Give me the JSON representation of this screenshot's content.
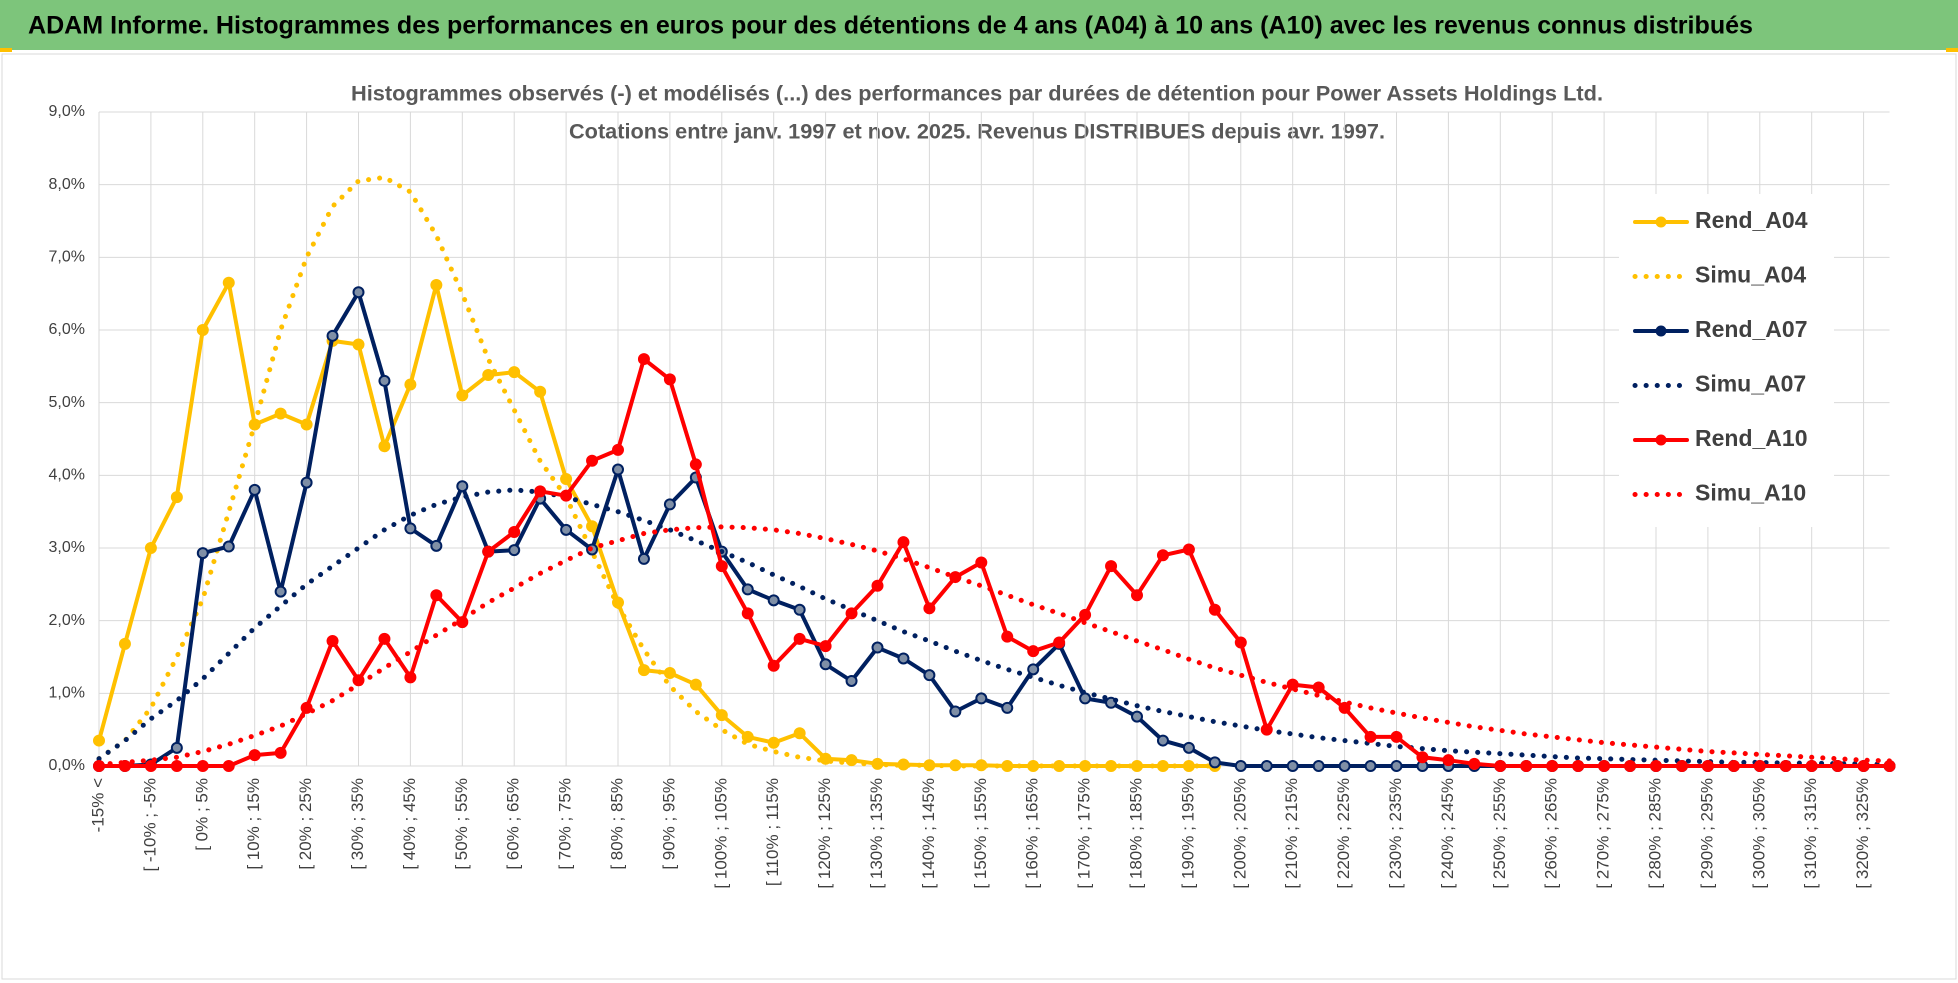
{
  "header": {
    "title": "ADAM Informe. Histogrammes des performances en euros pour des détentions de 4 ans (A04) à 10 ans (A10) avec les revenus connus distribués"
  },
  "chart_data": {
    "type": "line",
    "title": "Histogrammes observés (-) et modélisés (...) des performances par durées de détention pour Power Assets Holdings Ltd.",
    "subtitle": "Cotations entre janv. 1997 et nov. 2025. Revenus DISTRIBUES depuis avr. 1997.",
    "categories": [
      "-15% <",
      null,
      "[ -10% ; -5%",
      null,
      "[ 0% ; 5%",
      null,
      "[ 10% ; 15%",
      null,
      "[ 20% ; 25%",
      null,
      "[ 30% ; 35%",
      null,
      "[ 40% ; 45%",
      null,
      "[ 50% ; 55%",
      null,
      "[ 60% ; 65%",
      null,
      "[ 70% ; 75%",
      null,
      "[ 80% ; 85%",
      null,
      "[ 90% ; 95%",
      null,
      "[ 100% ; 105%",
      null,
      "[ 110% ; 115%",
      null,
      "[ 120% ; 125%",
      null,
      "[ 130% ; 135%",
      null,
      "[ 140% ; 145%",
      null,
      "[ 150% ; 155%",
      null,
      "[ 160% ; 165%",
      null,
      "[ 170% ; 175%",
      null,
      "[ 180% ; 185%",
      null,
      "[ 190% ; 195%",
      null,
      "[ 200% ; 205%",
      null,
      "[ 210% ; 215%",
      null,
      "[ 220% ; 225%",
      null,
      "[ 230% ; 235%",
      null,
      "[ 240% ; 245%",
      null,
      "[ 250% ; 255%",
      null,
      "[ 260% ; 265%",
      null,
      "[ 270% ; 275%",
      null,
      "[ 280% ; 285%",
      null,
      "[ 290% ; 295%",
      null,
      "[ 300% ; 305%",
      null,
      "[ 310% ; 315%",
      null,
      "[ 320% ; 325%",
      null
    ],
    "series": [
      {
        "name": "Rend_A04",
        "color": "#ffc000",
        "dash": "solid",
        "markers": true,
        "values": [
          0.35,
          1.68,
          3.0,
          3.7,
          6.0,
          6.65,
          4.7,
          4.85,
          4.7,
          5.85,
          5.8,
          4.4,
          5.25,
          6.62,
          5.1,
          5.38,
          5.42,
          5.15,
          3.95,
          3.3,
          2.25,
          1.32,
          1.28,
          1.12,
          0.7,
          0.4,
          0.32,
          0.45,
          0.1,
          0.08,
          0.03,
          0.02,
          0.01,
          0.01,
          0.01,
          0,
          0,
          0,
          0,
          0,
          0,
          0,
          0,
          0,
          null,
          null,
          null,
          null,
          null,
          null,
          null,
          null,
          null,
          null,
          null,
          null,
          null,
          null,
          null,
          null,
          null,
          null,
          null,
          null,
          null,
          null,
          null,
          null,
          null,
          null
        ]
      },
      {
        "name": "Simu_A04",
        "color": "#ffc000",
        "dash": "dotted",
        "markers": false,
        "values": [
          0.1,
          0.35,
          0.8,
          1.5,
          2.3,
          3.5,
          4.7,
          6.0,
          7.0,
          7.7,
          8.05,
          8.1,
          7.9,
          7.3,
          6.5,
          5.6,
          4.9,
          4.2,
          3.7,
          2.95,
          2.2,
          1.6,
          1.1,
          0.75,
          0.5,
          0.3,
          0.2,
          0.12,
          0.07,
          0.04,
          0.02,
          0.01,
          0.01,
          0,
          0,
          0,
          0,
          0,
          0,
          0,
          0,
          0,
          0,
          0,
          null,
          null,
          null,
          null,
          null,
          null,
          null,
          null,
          null,
          null,
          null,
          null,
          null,
          null,
          null,
          null,
          null,
          null,
          null,
          null,
          null,
          null,
          null,
          null,
          null,
          null
        ]
      },
      {
        "name": "Rend_A07",
        "color": "#002060",
        "dash": "solid",
        "markers": true,
        "values": [
          0,
          0,
          0.02,
          0.25,
          2.93,
          3.02,
          3.8,
          2.4,
          3.9,
          5.92,
          6.52,
          5.3,
          3.27,
          3.03,
          3.85,
          2.95,
          2.97,
          3.68,
          3.25,
          2.98,
          4.08,
          2.85,
          3.6,
          3.97,
          2.95,
          2.43,
          2.28,
          2.15,
          1.4,
          1.17,
          1.63,
          1.48,
          1.25,
          0.75,
          0.93,
          0.8,
          1.33,
          1.68,
          0.93,
          0.87,
          0.68,
          0.35,
          0.25,
          0.05,
          0,
          0,
          0,
          0,
          0,
          0,
          0,
          0,
          0,
          0,
          0,
          0,
          0,
          0,
          0,
          0,
          0,
          0,
          0,
          0,
          0,
          0,
          0,
          0,
          0,
          0
        ]
      },
      {
        "name": "Simu_A07",
        "color": "#002060",
        "dash": "dotted",
        "markers": false,
        "values": [
          0.1,
          0.35,
          0.65,
          0.9,
          1.2,
          1.55,
          1.9,
          2.2,
          2.5,
          2.75,
          3.0,
          3.25,
          3.45,
          3.6,
          3.7,
          3.77,
          3.8,
          3.77,
          3.7,
          3.6,
          3.5,
          3.38,
          3.25,
          3.1,
          2.95,
          2.8,
          2.63,
          2.47,
          2.3,
          2.15,
          2.0,
          1.85,
          1.72,
          1.58,
          1.45,
          1.33,
          1.22,
          1.11,
          1.01,
          0.92,
          0.83,
          0.75,
          0.68,
          0.61,
          0.55,
          0.49,
          0.44,
          0.39,
          0.35,
          0.31,
          0.27,
          0.24,
          0.21,
          0.19,
          0.17,
          0.15,
          0.13,
          0.11,
          0.1,
          0.09,
          0.08,
          0.07,
          0.06,
          0.05,
          0.05,
          0.04,
          0.04,
          0.03,
          0.03,
          0.02
        ]
      },
      {
        "name": "Rend_A10",
        "color": "#ff0000",
        "dash": "solid",
        "markers": true,
        "values": [
          0,
          0,
          0,
          0,
          0,
          0,
          0.15,
          0.18,
          0.8,
          1.72,
          1.18,
          1.75,
          1.22,
          2.35,
          1.98,
          2.95,
          3.22,
          3.78,
          3.72,
          4.2,
          4.35,
          5.6,
          5.32,
          4.15,
          2.75,
          2.1,
          1.38,
          1.75,
          1.65,
          2.1,
          2.48,
          3.08,
          2.17,
          2.6,
          2.8,
          1.78,
          1.58,
          1.7,
          2.08,
          2.75,
          2.35,
          2.9,
          2.98,
          2.15,
          1.7,
          0.5,
          1.12,
          1.08,
          0.8,
          0.4,
          0.4,
          0.12,
          0.08,
          0.03,
          0,
          0,
          0,
          0,
          0,
          0,
          0,
          0,
          0,
          0,
          0,
          0,
          0,
          0,
          0,
          0
        ]
      },
      {
        "name": "Simu_A10",
        "color": "#ff0000",
        "dash": "dotted",
        "markers": false,
        "values": [
          0.02,
          0.05,
          0.08,
          0.12,
          0.2,
          0.3,
          0.42,
          0.55,
          0.72,
          0.9,
          1.12,
          1.35,
          1.57,
          1.8,
          2.02,
          2.25,
          2.45,
          2.65,
          2.83,
          3.0,
          3.1,
          3.2,
          3.25,
          3.28,
          3.29,
          3.28,
          3.25,
          3.2,
          3.13,
          3.05,
          2.96,
          2.85,
          2.73,
          2.6,
          2.48,
          2.35,
          2.22,
          2.1,
          1.97,
          1.85,
          1.72,
          1.6,
          1.47,
          1.35,
          1.25,
          1.15,
          1.06,
          0.97,
          0.88,
          0.8,
          0.73,
          0.66,
          0.6,
          0.54,
          0.49,
          0.44,
          0.4,
          0.36,
          0.32,
          0.29,
          0.26,
          0.23,
          0.2,
          0.18,
          0.16,
          0.14,
          0.12,
          0.1,
          0.08,
          0.07
        ]
      }
    ],
    "ylim": [
      0,
      9
    ],
    "yticks": [
      {
        "value": 0,
        "label": "0,0%"
      },
      {
        "value": 1,
        "label": "1,0%"
      },
      {
        "value": 2,
        "label": "2,0%"
      },
      {
        "value": 3,
        "label": "3,0%"
      },
      {
        "value": 4,
        "label": "4,0%"
      },
      {
        "value": 5,
        "label": "5,0%"
      },
      {
        "value": 6,
        "label": "6,0%"
      },
      {
        "value": 7,
        "label": "7,0%"
      },
      {
        "value": 8,
        "label": "8,0%"
      },
      {
        "value": 9,
        "label": "9,0%"
      }
    ],
    "grid": true,
    "legend": "right"
  }
}
